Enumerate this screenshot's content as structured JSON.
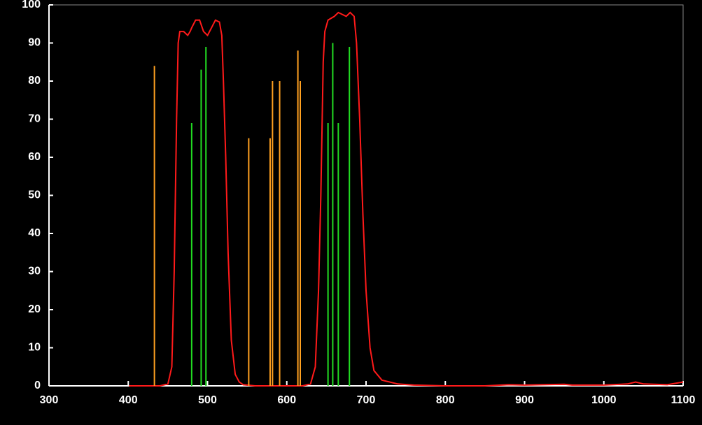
{
  "chart_data": {
    "type": "line",
    "xlim": [
      300,
      1100
    ],
    "xticks": [
      300,
      400,
      500,
      600,
      700,
      800,
      900,
      1000,
      1100
    ],
    "ylim": [
      0,
      100
    ],
    "yticks": [
      0,
      10,
      20,
      30,
      40,
      50,
      60,
      70,
      80,
      90,
      100
    ],
    "series": [
      {
        "mark": "line",
        "color": "#ff1a1a",
        "x": [
          401,
          440,
          450,
          455,
          458,
          461,
          463,
          465,
          470,
          475,
          478,
          480,
          485,
          490,
          495,
          500,
          505,
          510,
          515,
          518,
          520,
          523,
          526,
          530,
          535,
          540,
          545,
          560,
          620,
          630,
          636,
          640,
          643,
          646,
          648,
          652,
          660,
          665,
          670,
          675,
          680,
          685,
          688,
          692,
          696,
          700,
          705,
          710,
          720,
          740,
          760,
          800,
          850,
          880,
          900,
          950,
          960,
          1000,
          1030,
          1040,
          1050,
          1080,
          1100
        ],
        "values": [
          0,
          0,
          0.5,
          5,
          30,
          70,
          90,
          93,
          93,
          92,
          93,
          94,
          96,
          96,
          93,
          92,
          94,
          96,
          95.5,
          92,
          80,
          60,
          35,
          12,
          3,
          1,
          0.3,
          0,
          0,
          0.5,
          5,
          25,
          50,
          85,
          93,
          96,
          97,
          98,
          97.5,
          97,
          98,
          97,
          90,
          70,
          45,
          25,
          10,
          4,
          1.5,
          0.5,
          0.2,
          0,
          0,
          0.3,
          0.2,
          0.4,
          0.2,
          0.2,
          0.5,
          1,
          0.5,
          0.3,
          1
        ]
      },
      {
        "mark": "stem",
        "color": "#ffa020",
        "x": [
          433,
          552,
          579,
          582,
          591,
          614,
          617
        ],
        "values": [
          84,
          65,
          65,
          80,
          80,
          88,
          80
        ]
      },
      {
        "mark": "stem",
        "color": "#22dd22",
        "x": [
          480,
          492,
          498,
          652,
          658,
          665,
          679
        ],
        "values": [
          69,
          83,
          89,
          69,
          90,
          69,
          89
        ]
      }
    ]
  }
}
